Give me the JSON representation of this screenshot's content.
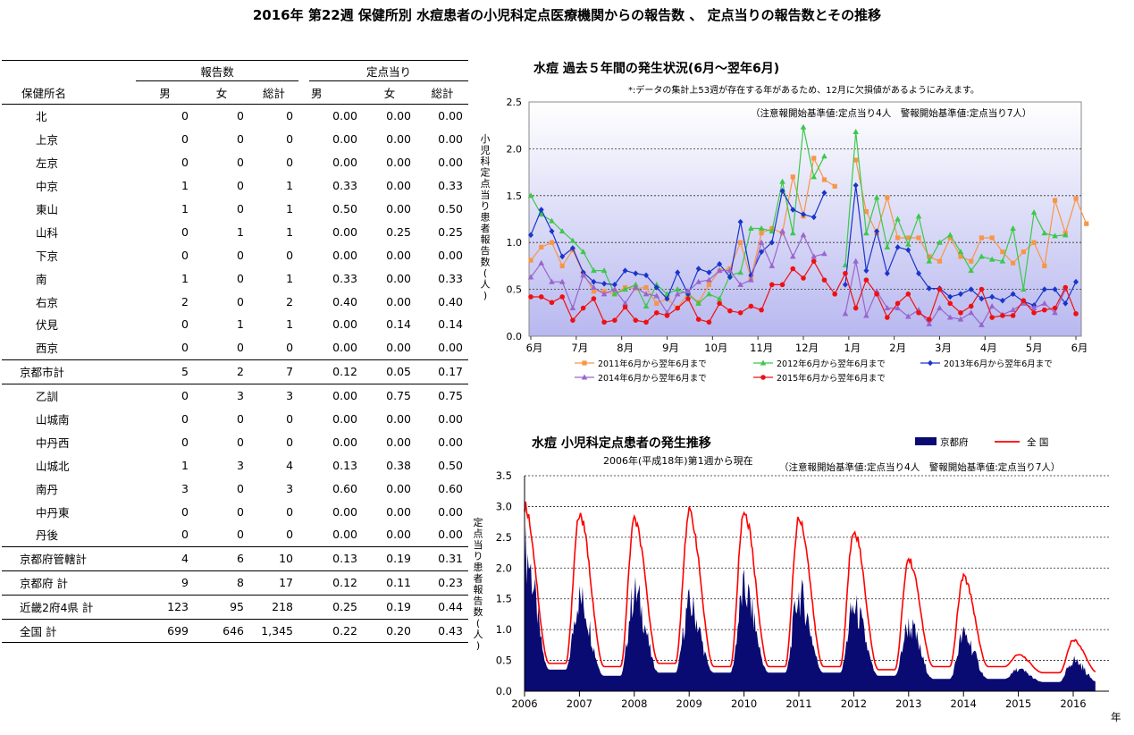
{
  "title": "2016年 第22週 保健所別 水痘患者の小児科定点医療機関からの報告数 、 定点当りの報告数とその推移",
  "table": {
    "group_reports": "報告数",
    "group_per_site": "定点当り",
    "col_name": "保健所名",
    "col_male": "男",
    "col_female": "女",
    "col_total": "総計",
    "col_male2": "男",
    "col_female2": "女",
    "col_total2": "総計",
    "rows": [
      {
        "name": "北",
        "m": "0",
        "f": "0",
        "t": "0",
        "pm": "0.00",
        "pf": "0.00",
        "pt": "0.00"
      },
      {
        "name": "上京",
        "m": "0",
        "f": "0",
        "t": "0",
        "pm": "0.00",
        "pf": "0.00",
        "pt": "0.00"
      },
      {
        "name": "左京",
        "m": "0",
        "f": "0",
        "t": "0",
        "pm": "0.00",
        "pf": "0.00",
        "pt": "0.00"
      },
      {
        "name": "中京",
        "m": "1",
        "f": "0",
        "t": "1",
        "pm": "0.33",
        "pf": "0.00",
        "pt": "0.33"
      },
      {
        "name": "東山",
        "m": "1",
        "f": "0",
        "t": "1",
        "pm": "0.50",
        "pf": "0.00",
        "pt": "0.50"
      },
      {
        "name": "山科",
        "m": "0",
        "f": "1",
        "t": "1",
        "pm": "0.00",
        "pf": "0.25",
        "pt": "0.25"
      },
      {
        "name": "下京",
        "m": "0",
        "f": "0",
        "t": "0",
        "pm": "0.00",
        "pf": "0.00",
        "pt": "0.00"
      },
      {
        "name": "南",
        "m": "1",
        "f": "0",
        "t": "1",
        "pm": "0.33",
        "pf": "0.00",
        "pt": "0.33"
      },
      {
        "name": "右京",
        "m": "2",
        "f": "0",
        "t": "2",
        "pm": "0.40",
        "pf": "0.00",
        "pt": "0.40"
      },
      {
        "name": "伏見",
        "m": "0",
        "f": "1",
        "t": "1",
        "pm": "0.00",
        "pf": "0.14",
        "pt": "0.14"
      },
      {
        "name": "西京",
        "m": "0",
        "f": "0",
        "t": "0",
        "pm": "0.00",
        "pf": "0.00",
        "pt": "0.00"
      },
      {
        "name": "京都市計",
        "m": "5",
        "f": "2",
        "t": "7",
        "pm": "0.12",
        "pf": "0.05",
        "pt": "0.17",
        "total": true
      },
      {
        "name": "乙訓",
        "m": "0",
        "f": "3",
        "t": "3",
        "pm": "0.00",
        "pf": "0.75",
        "pt": "0.75"
      },
      {
        "name": "山城南",
        "m": "0",
        "f": "0",
        "t": "0",
        "pm": "0.00",
        "pf": "0.00",
        "pt": "0.00"
      },
      {
        "name": "中丹西",
        "m": "0",
        "f": "0",
        "t": "0",
        "pm": "0.00",
        "pf": "0.00",
        "pt": "0.00"
      },
      {
        "name": "山城北",
        "m": "1",
        "f": "3",
        "t": "4",
        "pm": "0.13",
        "pf": "0.38",
        "pt": "0.50"
      },
      {
        "name": "南丹",
        "m": "3",
        "f": "0",
        "t": "3",
        "pm": "0.60",
        "pf": "0.00",
        "pt": "0.60"
      },
      {
        "name": "中丹東",
        "m": "0",
        "f": "0",
        "t": "0",
        "pm": "0.00",
        "pf": "0.00",
        "pt": "0.00"
      },
      {
        "name": "丹後",
        "m": "0",
        "f": "0",
        "t": "0",
        "pm": "0.00",
        "pf": "0.00",
        "pt": "0.00"
      },
      {
        "name": "京都府管轄計",
        "m": "4",
        "f": "6",
        "t": "10",
        "pm": "0.13",
        "pf": "0.19",
        "pt": "0.31",
        "total": true
      },
      {
        "name": "京都府 計",
        "m": "9",
        "f": "8",
        "t": "17",
        "pm": "0.12",
        "pf": "0.11",
        "pt": "0.23",
        "total": true
      },
      {
        "name": "近畿2府4県 計",
        "m": "123",
        "f": "95",
        "t": "218",
        "pm": "0.25",
        "pf": "0.19",
        "pt": "0.44",
        "total": true
      },
      {
        "name": "全国 計",
        "m": "699",
        "f": "646",
        "t": "1,345",
        "pm": "0.22",
        "pf": "0.20",
        "pt": "0.43",
        "total": true
      }
    ]
  },
  "chart_data": [
    {
      "type": "line",
      "title": "水痘 過去５年間の発生状況(6月～翌年6月)",
      "note": "*:データの集計上53週が存在する年があるため、12月に欠損値があるようにみえます。",
      "threshold_note": "（注意報開始基準値:定点当り4人　警報開始基準値:定点当り7人）",
      "ylabel": "小児科定点当り患者報告数(人)",
      "ylim": [
        0,
        2.5
      ],
      "yticks": [
        "0.0",
        "0.5",
        "1.0",
        "1.5",
        "2.0",
        "2.5"
      ],
      "xticks": [
        "6月",
        "7月",
        "8月",
        "9月",
        "10月",
        "11月",
        "12月",
        "1月",
        "2月",
        "3月",
        "4月",
        "5月",
        "6月"
      ],
      "legend_placement": "bottom",
      "series": [
        {
          "name": "2011年6月から翌年6月まで",
          "color": "#f79646",
          "marker": "square",
          "values": [
            0.81,
            0.95,
            1.0,
            0.75,
            0.92,
            0.67,
            0.48,
            0.48,
            0.45,
            0.52,
            0.51,
            0.52,
            0.35,
            0.4,
            0.3,
            0.46,
            0.36,
            0.55,
            0.7,
            0.72,
            1.0,
            0.62,
            1.1,
            1.15,
            1.1,
            1.7,
            1.28,
            1.9,
            1.67,
            1.6,
            null,
            1.88,
            1.33,
            1.1,
            1.48,
            1.05,
            1.05,
            1.05,
            0.85,
            0.8,
            1.05,
            0.85,
            0.8,
            1.05,
            1.05,
            0.9,
            0.78,
            0.9,
            1.0,
            0.75,
            1.45,
            1.1,
            1.47,
            1.2
          ]
        },
        {
          "name": "2012年6月から翌年6月まで",
          "color": "#3cc84a",
          "marker": "triangle",
          "values": [
            1.5,
            1.3,
            1.23,
            1.12,
            1.02,
            0.9,
            0.7,
            0.7,
            0.45,
            0.5,
            0.55,
            0.32,
            0.55,
            0.45,
            0.5,
            0.45,
            0.35,
            0.45,
            0.4,
            0.65,
            0.68,
            1.15,
            1.15,
            1.12,
            1.65,
            1.1,
            2.23,
            1.7,
            1.92,
            null,
            0.76,
            2.18,
            1.1,
            1.48,
            0.95,
            1.25,
            0.98,
            1.28,
            0.8,
            1.0,
            1.08,
            0.9,
            0.7,
            0.85,
            0.82,
            0.8,
            1.15,
            0.5,
            1.32,
            1.1,
            1.07,
            1.08
          ]
        },
        {
          "name": "2013年6月から翌年6月まで",
          "color": "#1a35c8",
          "marker": "diamond",
          "values": [
            1.08,
            1.35,
            1.12,
            0.85,
            0.94,
            0.68,
            0.58,
            0.56,
            0.55,
            0.7,
            0.67,
            0.65,
            0.52,
            0.4,
            0.68,
            0.45,
            0.72,
            0.68,
            0.77,
            0.63,
            1.22,
            0.65,
            0.9,
            1.0,
            1.55,
            1.35,
            1.3,
            1.27,
            1.53,
            null,
            0.55,
            1.61,
            0.7,
            1.12,
            0.67,
            0.95,
            0.92,
            0.67,
            0.51,
            0.51,
            0.42,
            0.45,
            0.5,
            0.4,
            0.42,
            0.38,
            0.45,
            0.37,
            0.33,
            0.5,
            0.5,
            0.35,
            0.58
          ]
        },
        {
          "name": "2014年6月から翌年6月まで",
          "color": "#9966cc",
          "marker": "triangle",
          "values": [
            0.63,
            0.78,
            0.58,
            0.58,
            0.3,
            0.65,
            0.52,
            0.45,
            0.5,
            0.35,
            0.52,
            0.45,
            0.43,
            0.25,
            0.45,
            0.48,
            0.58,
            0.6,
            0.7,
            0.7,
            0.55,
            0.6,
            1.0,
            0.75,
            1.12,
            0.85,
            1.08,
            0.85,
            0.88,
            null,
            0.24,
            0.8,
            0.22,
            0.48,
            0.3,
            0.3,
            0.21,
            0.28,
            0.13,
            0.3,
            0.2,
            0.18,
            0.25,
            0.12,
            0.32,
            0.23,
            0.28,
            0.35,
            0.3,
            0.35,
            0.25,
            0.5
          ]
        },
        {
          "name": "2015年6月から翌年6月まで",
          "color": "#ee1111",
          "marker": "circle",
          "values": [
            0.42,
            0.42,
            0.36,
            0.42,
            0.17,
            0.3,
            0.4,
            0.15,
            0.17,
            0.31,
            0.17,
            0.15,
            0.25,
            0.22,
            0.3,
            0.4,
            0.18,
            0.15,
            0.35,
            0.27,
            0.25,
            0.32,
            0.28,
            0.55,
            0.55,
            0.72,
            0.62,
            0.8,
            0.6,
            0.45,
            0.67,
            0.3,
            0.6,
            0.45,
            0.2,
            0.35,
            0.45,
            0.25,
            0.18,
            0.5,
            0.35,
            0.25,
            0.32,
            0.5,
            0.2,
            0.22,
            0.22,
            0.38,
            0.25,
            0.28,
            0.3,
            0.52,
            0.24
          ]
        }
      ]
    },
    {
      "type": "area",
      "title": "水痘 小児科定点患者の発生推移",
      "subtitle": "2006年(平成18年)第1週から現在",
      "threshold_note": "（注意報開始基準値:定点当り4人　警報開始基準値:定点当り7人）",
      "ylabel": "定点当り患者報告数(人)",
      "xlabel": "年",
      "ylim": [
        0,
        3.5
      ],
      "yticks": [
        "0.0",
        "0.5",
        "1.0",
        "1.5",
        "2.0",
        "2.5",
        "3.0",
        "3.5"
      ],
      "xticks": [
        "2006",
        "2007",
        "2008",
        "2009",
        "2010",
        "2011",
        "2012",
        "2013",
        "2014",
        "2015",
        "2016"
      ],
      "legend_placement": "top-right",
      "series": [
        {
          "name": "京都府",
          "color": "#0a0a73",
          "style": "area"
        },
        {
          "name": "全 国",
          "color": "#ff0000",
          "style": "line"
        }
      ],
      "annual": [
        {
          "year": 2006,
          "kyoto_peak": 2.8,
          "nation_peak": 3.1,
          "kyoto_low": 0.35,
          "nation_low": 0.45
        },
        {
          "year": 2007,
          "kyoto_peak": 1.85,
          "nation_peak": 2.95,
          "kyoto_low": 0.25,
          "nation_low": 0.4
        },
        {
          "year": 2008,
          "kyoto_peak": 1.95,
          "nation_peak": 2.85,
          "kyoto_low": 0.3,
          "nation_low": 0.45
        },
        {
          "year": 2009,
          "kyoto_peak": 1.7,
          "nation_peak": 3.0,
          "kyoto_low": 0.3,
          "nation_low": 0.4
        },
        {
          "year": 2010,
          "kyoto_peak": 2.0,
          "nation_peak": 3.0,
          "kyoto_low": 0.3,
          "nation_low": 0.4
        },
        {
          "year": 2011,
          "kyoto_peak": 1.9,
          "nation_peak": 2.9,
          "kyoto_low": 0.3,
          "nation_low": 0.4
        },
        {
          "year": 2012,
          "kyoto_peak": 1.65,
          "nation_peak": 2.7,
          "kyoto_low": 0.25,
          "nation_low": 0.35
        },
        {
          "year": 2013,
          "kyoto_peak": 1.3,
          "nation_peak": 2.2,
          "kyoto_low": 0.2,
          "nation_low": 0.4
        },
        {
          "year": 2014,
          "kyoto_peak": 1.1,
          "nation_peak": 1.9,
          "kyoto_low": 0.2,
          "nation_low": 0.4
        },
        {
          "year": 2015,
          "kyoto_peak": 0.4,
          "nation_peak": 0.6,
          "kyoto_low": 0.15,
          "nation_low": 0.3
        },
        {
          "year": 2016,
          "kyoto_peak": 0.6,
          "nation_peak": 0.85,
          "kyoto_low": 0.15,
          "nation_low": 0.3
        }
      ]
    }
  ]
}
